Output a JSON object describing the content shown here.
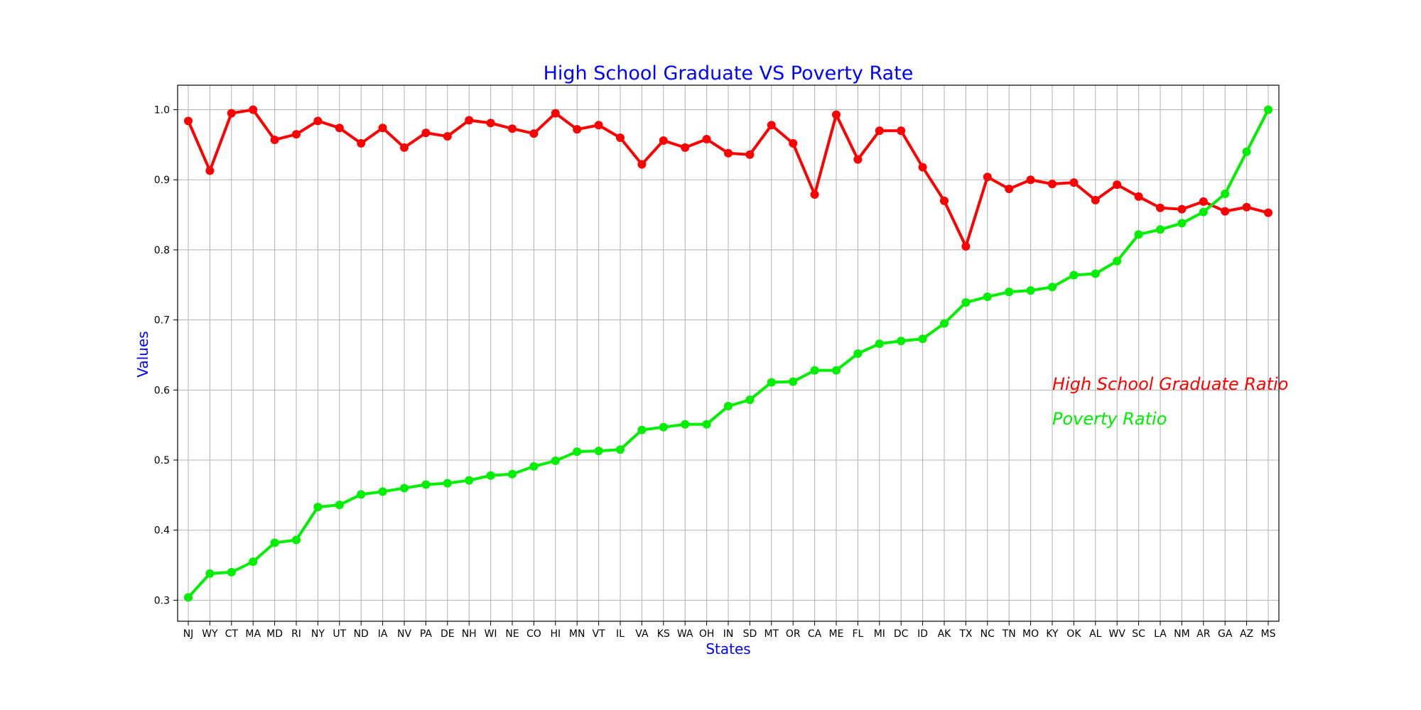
{
  "chart_data": {
    "type": "line",
    "title": "High School Graduate VS Poverty Rate",
    "xlabel": "States",
    "ylabel": "Values",
    "ylim": [
      0.27,
      1.035
    ],
    "yticks": [
      0.3,
      0.4,
      0.5,
      0.6,
      0.7,
      0.8,
      0.9,
      1.0
    ],
    "grid": true,
    "legend_placement": "right",
    "categories": [
      "NJ",
      "WY",
      "CT",
      "MA",
      "MD",
      "RI",
      "NY",
      "UT",
      "ND",
      "IA",
      "NV",
      "PA",
      "DE",
      "NH",
      "WI",
      "NE",
      "CO",
      "HI",
      "MN",
      "VT",
      "IL",
      "VA",
      "KS",
      "WA",
      "OH",
      "IN",
      "SD",
      "MT",
      "OR",
      "CA",
      "ME",
      "FL",
      "MI",
      "DC",
      "ID",
      "AK",
      "TX",
      "NC",
      "TN",
      "MO",
      "KY",
      "OK",
      "AL",
      "WV",
      "SC",
      "LA",
      "NM",
      "AR",
      "GA",
      "AZ",
      "MS"
    ],
    "series": [
      {
        "name": "High School Graduate Ratio",
        "color": "#ff0000",
        "values": [
          0.984,
          0.913,
          0.995,
          1.0,
          0.957,
          0.965,
          0.984,
          0.974,
          0.952,
          0.974,
          0.946,
          0.967,
          0.962,
          0.985,
          0.981,
          0.973,
          0.966,
          0.995,
          0.972,
          0.978,
          0.96,
          0.922,
          0.956,
          0.946,
          0.958,
          0.938,
          0.936,
          0.978,
          0.952,
          0.879,
          0.993,
          0.929,
          0.97,
          0.97,
          0.918,
          0.87,
          0.805,
          0.904,
          0.887,
          0.9,
          0.894,
          0.896,
          0.871,
          0.893,
          0.876,
          0.86,
          0.858,
          0.869,
          0.855,
          0.861,
          0.853
        ]
      },
      {
        "name": "Poverty Ratio",
        "color": "#00ee00",
        "values": [
          0.304,
          0.338,
          0.34,
          0.355,
          0.382,
          0.386,
          0.433,
          0.436,
          0.451,
          0.455,
          0.46,
          0.465,
          0.467,
          0.471,
          0.478,
          0.48,
          0.491,
          0.499,
          0.512,
          0.513,
          0.515,
          0.543,
          0.547,
          0.551,
          0.551,
          0.577,
          0.586,
          0.611,
          0.612,
          0.628,
          0.628,
          0.652,
          0.666,
          0.67,
          0.673,
          0.695,
          0.725,
          0.733,
          0.74,
          0.742,
          0.747,
          0.764,
          0.766,
          0.784,
          0.822,
          0.829,
          0.838,
          0.854,
          0.88,
          0.94,
          1.0
        ]
      }
    ],
    "title_color": "#0000ff",
    "label_color": "#0000ff"
  }
}
